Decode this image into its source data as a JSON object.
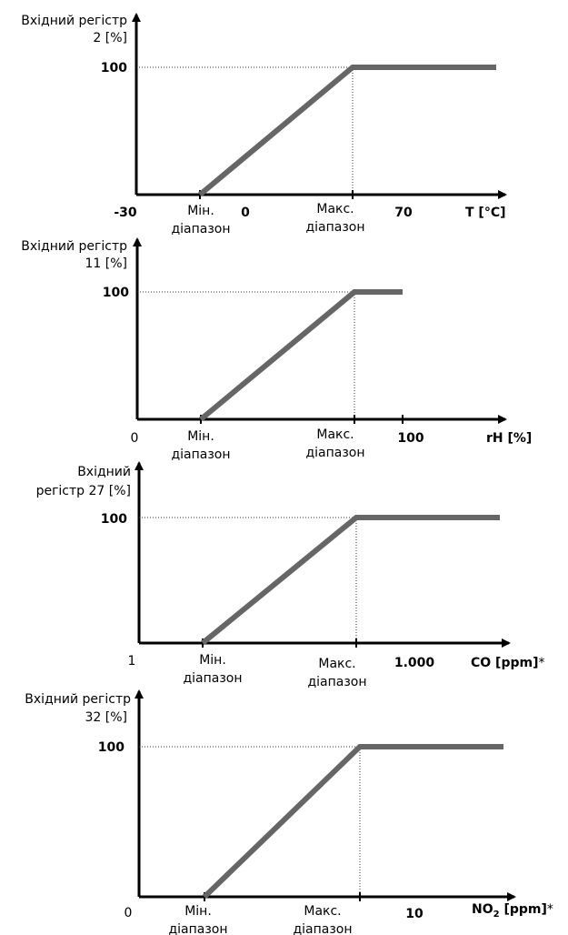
{
  "style": {
    "axis_color": "#000000",
    "curve_color": "#666666",
    "guide_color": "#333333"
  },
  "charts": [
    {
      "y_label_lines": [
        "Вхідний регістр",
        "2 [%]"
      ],
      "y_tick": "100",
      "x_start_label": "-30",
      "x_start_bold": true,
      "min_label": [
        "Мін.",
        "діапазон"
      ],
      "max_label": [
        "Макс.",
        "діапазон"
      ],
      "x_labels": [
        "0",
        "70"
      ],
      "unit_main": "T [°C]",
      "unit_sub": "",
      "unit_tail": "",
      "unit_star": ""
    },
    {
      "y_label_lines": [
        "Вхідний регістр",
        "11 [%]"
      ],
      "y_tick": "100",
      "x_start_label": "0",
      "x_start_bold": false,
      "min_label": [
        "Мін.",
        "діапазон"
      ],
      "max_label": [
        "Макс.",
        "діапазон"
      ],
      "x_labels": [
        "100"
      ],
      "unit_main": "rH [%]",
      "unit_sub": "",
      "unit_tail": "",
      "unit_star": ""
    },
    {
      "y_label_lines": [
        "Вхідний",
        "регістр 27 [%]"
      ],
      "y_tick": "100",
      "x_start_label": "1",
      "x_start_bold": false,
      "min_label": [
        "Мін.",
        "діапазон"
      ],
      "max_label": [
        "Макс.",
        "діапазон"
      ],
      "x_labels": [
        "1.000"
      ],
      "unit_main": "CO [ppm]",
      "unit_sub": "",
      "unit_tail": "",
      "unit_star": "*"
    },
    {
      "y_label_lines": [
        "Вхідний регістр",
        "32 [%]"
      ],
      "y_tick": "100",
      "x_start_label": "0",
      "x_start_bold": false,
      "min_label": [
        "Мін.",
        "діапазон"
      ],
      "max_label": [
        "Макс.",
        "діапазон"
      ],
      "x_labels": [
        "10"
      ],
      "unit_main": "NO",
      "unit_sub": "2",
      "unit_tail": " [ppm]",
      "unit_star": "*"
    }
  ]
}
